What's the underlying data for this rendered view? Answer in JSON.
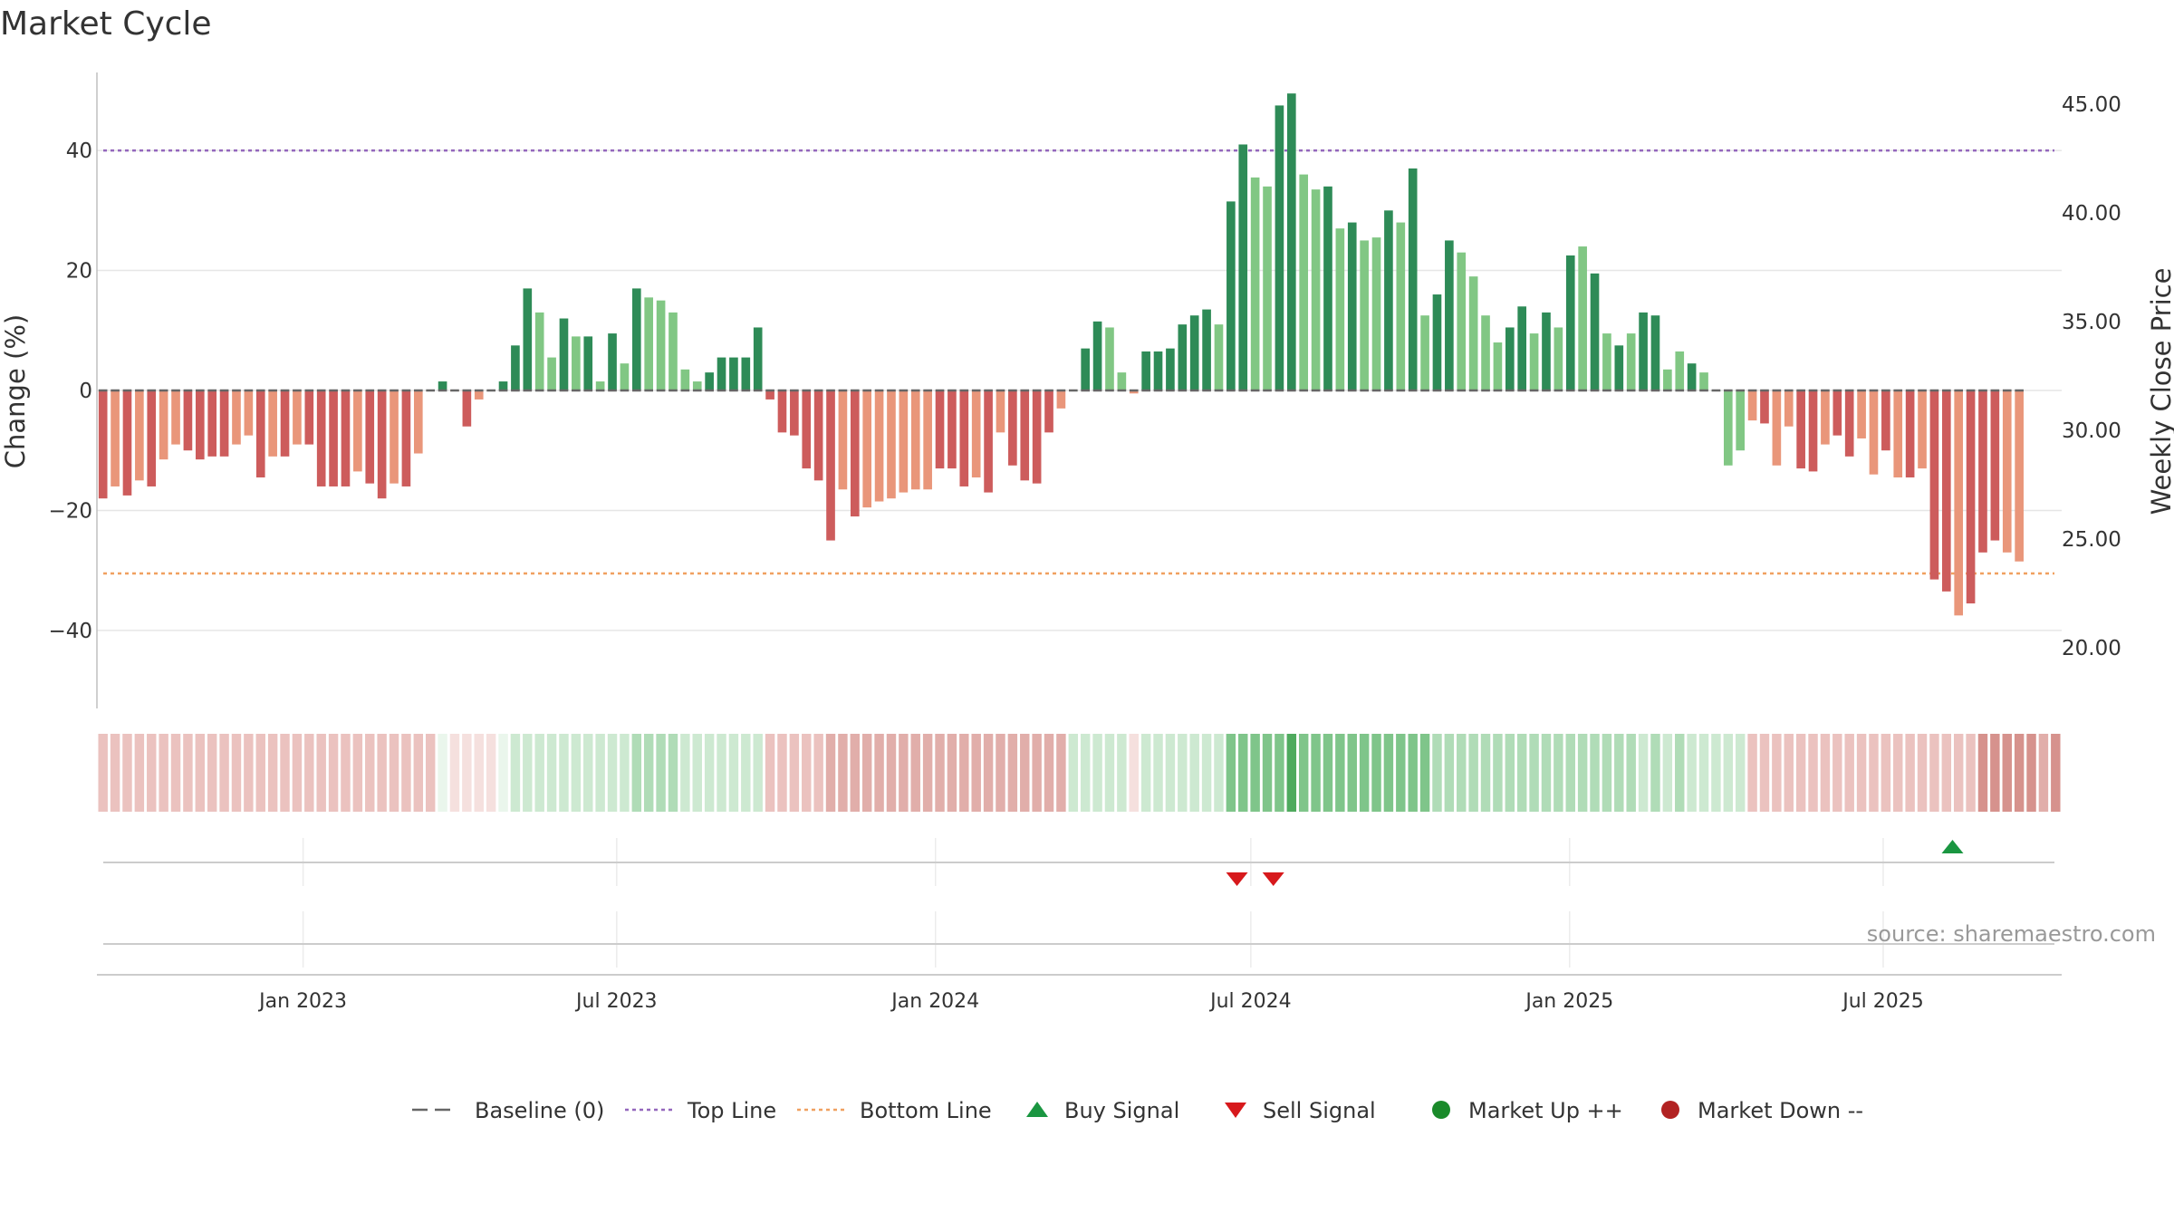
{
  "chart_data": {
    "type": "bar",
    "title": "Market Cycle",
    "ylabel_left": "Change (%)",
    "ylabel_right": "Weekly Close Price",
    "ylim_left": [
      -53,
      53
    ],
    "yticks_left": [
      40,
      20,
      0,
      -20,
      -40
    ],
    "ytick_labels_left": [
      "40",
      "20",
      "0",
      "−20",
      "−40"
    ],
    "ylim_right": [
      17.2,
      46.45
    ],
    "yticks_right": [
      45,
      40,
      35,
      30,
      25,
      20
    ],
    "ytick_labels_right": [
      "45.00",
      "40.00",
      "35.00",
      "30.00",
      "25.00",
      "20.00"
    ],
    "x_start": "2022-09-04",
    "x_end": "2025-10-12",
    "x_ticks": [
      {
        "date": "2023-01-01",
        "label": "Jan 2023"
      },
      {
        "date": "2023-07-01",
        "label": "Jul 2023"
      },
      {
        "date": "2024-01-01",
        "label": "Jan 2024"
      },
      {
        "date": "2024-07-01",
        "label": "Jul 2024"
      },
      {
        "date": "2025-01-01",
        "label": "Jan 2025"
      },
      {
        "date": "2025-07-01",
        "label": "Jul 2025"
      }
    ],
    "first_week": "2022-09-04",
    "week_step_days": 7,
    "weekly_change": [
      -18,
      -16,
      -17.5,
      -15,
      -16,
      -11.5,
      -9,
      -10,
      -11.5,
      -11,
      -11,
      -9,
      -7.5,
      -14.5,
      -11,
      -11,
      -9,
      -9,
      -16,
      -16,
      -16,
      -13.5,
      -15.5,
      -18,
      -15.5,
      -16,
      -10.5,
      0,
      1.5,
      0,
      -6,
      -1.5,
      0,
      1.5,
      7.5,
      17,
      13,
      5.5,
      12,
      9,
      9,
      1.5,
      9.5,
      4.5,
      17,
      15.5,
      15,
      13,
      3.5,
      1.5,
      3,
      5.5,
      5.5,
      5.5,
      10.5,
      -1.5,
      -7,
      -7.5,
      -13,
      -15,
      -25,
      -16.5,
      -21,
      -19.5,
      -18.5,
      -18,
      -17,
      -16.5,
      -16.5,
      -13,
      -13,
      -16,
      -14.5,
      -17,
      -7,
      -12.5,
      -15,
      -15.5,
      -7,
      -3,
      0,
      7,
      11.5,
      10.5,
      3,
      -0.5,
      6.5,
      6.5,
      7,
      11,
      12.5,
      13.5,
      11,
      31.5,
      41,
      35.5,
      34,
      47.5,
      49.5,
      36,
      33.5,
      34,
      27,
      28,
      25,
      25.5,
      30,
      28,
      37,
      12.5,
      16,
      25,
      23,
      19,
      12.5,
      8,
      10.5,
      14,
      9.5,
      13,
      10.5,
      22.5,
      24,
      19.5,
      9.5,
      7.5,
      9.5,
      13,
      12.5,
      3.5,
      6.5,
      4.5,
      3,
      0,
      -12.5,
      -10,
      -5,
      -5.5,
      -12.5,
      -6,
      -13,
      -13.5,
      -9,
      -7.5,
      -11,
      -8,
      -14,
      -10,
      -14.5,
      -14.5,
      -13,
      -31.5,
      -33.5,
      -37.5,
      -35.5,
      -27,
      -25,
      -27,
      -28.5
    ],
    "weekly_phase": [
      -3,
      -2,
      -3,
      -2,
      -3,
      -2,
      -2,
      -3,
      -3,
      -3,
      -3,
      -2,
      -2,
      -3,
      -2,
      -3,
      -2,
      -3,
      -3,
      -3,
      -3,
      -2,
      -3,
      -3,
      -2,
      -3,
      -2,
      -1,
      3,
      -1,
      -3,
      -2,
      -1,
      3,
      3,
      3,
      2,
      2,
      3,
      2,
      3,
      2,
      3,
      2,
      3,
      2,
      2,
      2,
      2,
      2,
      3,
      3,
      3,
      3,
      3,
      -3,
      -3,
      -3,
      -3,
      -3,
      -3,
      -2,
      -3,
      -2,
      -2,
      -2,
      -2,
      -2,
      -2,
      -3,
      -3,
      -3,
      -2,
      -3,
      -2,
      -3,
      -3,
      -3,
      -3,
      -2,
      1,
      3,
      3,
      2,
      2,
      -1,
      3,
      3,
      3,
      3,
      3,
      3,
      2,
      3,
      3,
      2,
      2,
      3,
      3,
      2,
      2,
      3,
      2,
      3,
      2,
      2,
      3,
      2,
      3,
      2,
      3,
      3,
      2,
      2,
      2,
      2,
      3,
      3,
      2,
      3,
      2,
      3,
      2,
      3,
      2,
      3,
      2,
      3,
      3,
      2,
      2,
      3,
      2,
      3,
      2,
      2,
      -1,
      -3,
      -2,
      -2,
      -3,
      -3,
      -2,
      -3,
      -3,
      -2,
      -2,
      -3,
      -2,
      -3,
      -2,
      -3,
      -3,
      -2,
      -3,
      -3,
      -3,
      -2,
      -2,
      -2,
      -3,
      -3
    ],
    "heat_intensity": [
      1,
      1,
      1,
      1,
      1,
      1,
      1,
      1,
      1,
      1,
      1,
      1,
      1,
      1,
      1,
      1,
      1,
      1,
      1,
      1,
      1,
      1,
      1,
      1,
      1,
      1,
      1,
      1,
      0,
      0,
      0,
      0,
      0,
      0,
      1,
      1,
      1,
      1,
      1,
      1,
      1,
      1,
      1,
      1,
      2,
      2,
      2,
      2,
      1,
      1,
      1,
      1,
      1,
      1,
      1,
      1,
      1,
      1,
      1,
      1,
      2,
      2,
      2,
      2,
      2,
      2,
      2,
      2,
      2,
      2,
      2,
      2,
      2,
      2,
      2,
      2,
      2,
      2,
      2,
      2,
      1,
      1,
      1,
      1,
      1,
      0,
      1,
      1,
      1,
      1,
      1,
      1,
      1,
      3,
      3,
      3,
      3,
      3,
      4,
      3,
      3,
      3,
      3,
      3,
      3,
      3,
      3,
      3,
      3,
      3,
      2,
      2,
      2,
      2,
      2,
      2,
      2,
      2,
      2,
      2,
      2,
      2,
      2,
      2,
      2,
      2,
      2,
      1,
      2,
      1,
      2,
      1,
      1,
      1,
      1,
      1,
      1,
      1,
      1,
      1,
      1,
      1,
      1,
      1,
      1,
      1,
      1,
      1,
      1,
      1,
      1,
      1,
      1,
      1,
      1,
      3,
      3,
      3,
      3,
      3,
      2,
      3,
      2
    ],
    "top_line": 40,
    "bottom_line": -30.5,
    "baseline": 0,
    "buy_signals": [
      "2025-08-10"
    ],
    "sell_signals": [
      "2024-06-23",
      "2024-07-14"
    ],
    "market_up_events": [],
    "market_down_events": [],
    "legend": [
      {
        "key": "baseline",
        "label": "Baseline (0)"
      },
      {
        "key": "top",
        "label": "Top Line"
      },
      {
        "key": "bottom",
        "label": "Bottom Line"
      },
      {
        "key": "buy",
        "label": "Buy Signal"
      },
      {
        "key": "sell",
        "label": "Sell Signal"
      },
      {
        "key": "up",
        "label": "Market Up ++"
      },
      {
        "key": "down",
        "label": "Market Down --"
      }
    ],
    "legend_placement": "bottom-center",
    "grid": true
  },
  "colors": {
    "strong_up": "#2e8b57",
    "mild_up": "#81c784",
    "strong_down": "#cd5c5c",
    "mild_down": "#e9967a",
    "top_line": "#9467bd",
    "bottom_line": "#f0a060",
    "buy": "#1a9641",
    "sell": "#d7191c",
    "market_up": "#1a8a2a",
    "market_down": "#b22222",
    "grid": "#e6e6e6",
    "axis": "#bfbfbf"
  },
  "source_text": "source: sharemaestro.com"
}
